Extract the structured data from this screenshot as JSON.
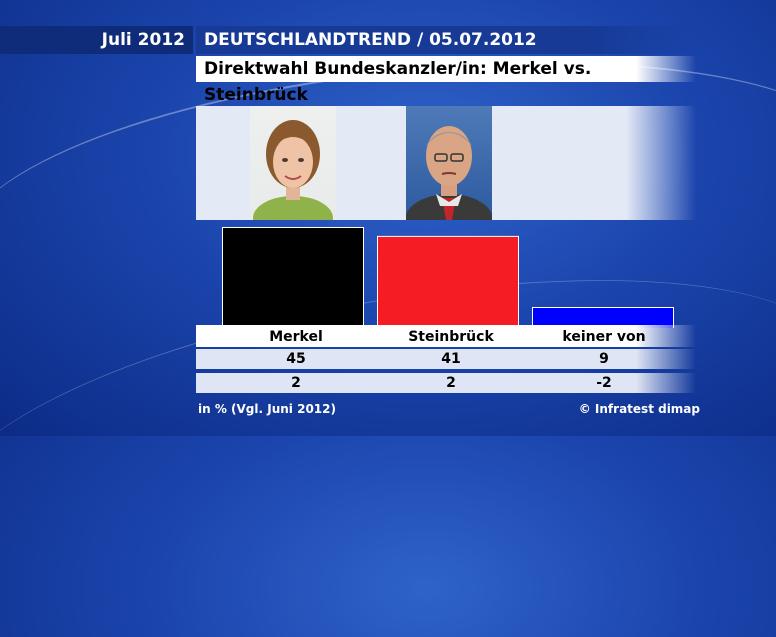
{
  "header": {
    "date": "Juli 2012",
    "title": "DEUTSCHLANDTREND / 05.07.2012",
    "subtitle": "Direktwahl Bundeskanzler/in: Merkel vs. Steinbrück"
  },
  "footer": {
    "note": "in % (Vgl. Juni 2012)",
    "source": "© Infratest dimap"
  },
  "chart_data": {
    "type": "bar",
    "title": "Direktwahl Bundeskanzler/in: Merkel vs. Steinbrück",
    "categories": [
      "Merkel",
      "Steinbrück",
      "keiner von beiden"
    ],
    "values": [
      45,
      41,
      9
    ],
    "changes": [
      "2",
      "2",
      "-2"
    ],
    "colors": [
      "#000000",
      "#f61c24",
      "#0000ff"
    ],
    "ylim": [
      0,
      45
    ]
  }
}
